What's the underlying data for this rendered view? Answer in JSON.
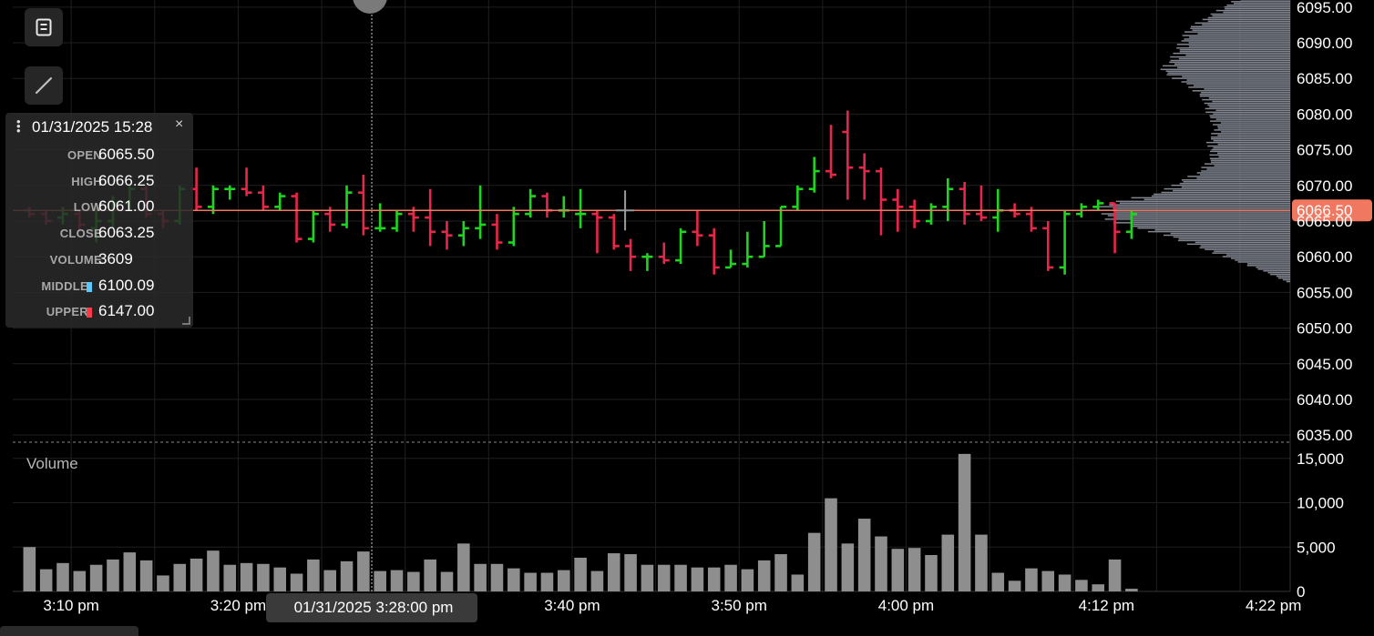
{
  "chart_data": {
    "type": "ohlc",
    "x_axis": {
      "tick_labels": [
        "3:10 pm",
        "3:20 pm",
        "3:40 pm",
        "3:50 pm",
        "4:00 pm",
        "4:12 pm",
        "4:22 pm"
      ],
      "tick_minutes": [
        190,
        200,
        220,
        230,
        240,
        252,
        262
      ],
      "range_minutes": [
        186.5,
        263
      ]
    },
    "price_axis": {
      "ticks": [
        6035,
        6040,
        6045,
        6050,
        6055,
        6060,
        6065,
        6070,
        6075,
        6080,
        6085,
        6090,
        6095
      ],
      "tick_labels": [
        "6035.00",
        "6040.00",
        "6045.00",
        "6050.00",
        "6055.00",
        "6060.00",
        "6065.00",
        "6070.00",
        "6075.00",
        "6080.00",
        "6085.00",
        "6090.00",
        "6095.00"
      ],
      "range": [
        6034,
        6096
      ]
    },
    "volume_axis": {
      "title": "Volume",
      "ticks": [
        0,
        5000,
        10000,
        15000
      ],
      "tick_labels": [
        "0",
        "5,000",
        "10,000",
        "15,000"
      ],
      "range": [
        0,
        16000
      ]
    },
    "current_price": 6066.5,
    "current_price_label": "6066.50",
    "crosshair": {
      "minute": 208,
      "label": "01/31/2025 3:28:00 pm"
    },
    "series": [
      {
        "name": "Volume",
        "type": "bar",
        "color": "#8e8e8e"
      }
    ],
    "bars": [
      {
        "open": 6066.5,
        "high": 6067.0,
        "low": 6065.5,
        "close": 6066.0,
        "volume": 5000
      },
      {
        "open": 6066.0,
        "high": 6066.5,
        "low": 6064.5,
        "close": 6065.0,
        "volume": 2500
      },
      {
        "open": 6065.5,
        "high": 6067.0,
        "low": 6064.5,
        "close": 6066.0,
        "volume": 3200
      },
      {
        "open": 6066.0,
        "high": 6066.5,
        "low": 6063.5,
        "close": 6064.5,
        "volume": 2300
      },
      {
        "open": 6064.0,
        "high": 6067.5,
        "low": 6062.0,
        "close": 6065.0,
        "volume": 3000
      },
      {
        "open": 6065.0,
        "high": 6068.5,
        "low": 6064.0,
        "close": 6067.5,
        "volume": 3600
      },
      {
        "open": 6067.5,
        "high": 6070.0,
        "low": 6066.5,
        "close": 6069.5,
        "volume": 4400
      },
      {
        "open": 6069.5,
        "high": 6070.0,
        "low": 6065.5,
        "close": 6066.0,
        "volume": 3500
      },
      {
        "open": 6066.0,
        "high": 6066.5,
        "low": 6064.0,
        "close": 6065.0,
        "volume": 1800
      },
      {
        "open": 6065.0,
        "high": 6070.0,
        "low": 6064.5,
        "close": 6069.5,
        "volume": 3100
      },
      {
        "open": 6069.5,
        "high": 6072.5,
        "low": 6066.5,
        "close": 6067.0,
        "volume": 3700
      },
      {
        "open": 6067.0,
        "high": 6070.0,
        "low": 6066.0,
        "close": 6069.5,
        "volume": 4600
      },
      {
        "open": 6069.5,
        "high": 6070.0,
        "low": 6068.0,
        "close": 6069.5,
        "volume": 3000
      },
      {
        "open": 6069.5,
        "high": 6072.5,
        "low": 6068.5,
        "close": 6069.0,
        "volume": 3200
      },
      {
        "open": 6069.0,
        "high": 6070.0,
        "low": 6066.5,
        "close": 6067.0,
        "volume": 3100
      },
      {
        "open": 6067.0,
        "high": 6069.0,
        "low": 6066.5,
        "close": 6068.5,
        "volume": 2700
      },
      {
        "open": 6068.5,
        "high": 6069.0,
        "low": 6062.0,
        "close": 6062.5,
        "volume": 2000
      },
      {
        "open": 6062.5,
        "high": 6066.5,
        "low": 6062.0,
        "close": 6066.0,
        "volume": 3600
      },
      {
        "open": 6066.0,
        "high": 6067.0,
        "low": 6063.5,
        "close": 6064.5,
        "volume": 2400
      },
      {
        "open": 6064.5,
        "high": 6070.0,
        "low": 6064.0,
        "close": 6069.0,
        "volume": 3400
      },
      {
        "open": 6069.0,
        "high": 6071.5,
        "low": 6063.0,
        "close": 6064.0,
        "volume": 4500
      },
      {
        "open": 6064.0,
        "high": 6067.5,
        "low": 6063.5,
        "close": 6064.0,
        "volume": 2300
      },
      {
        "open": 6064.0,
        "high": 6066.5,
        "low": 6063.5,
        "close": 6066.0,
        "volume": 2400
      },
      {
        "open": 6066.0,
        "high": 6067.0,
        "low": 6063.5,
        "close": 6065.5,
        "volume": 2200
      },
      {
        "open": 6065.5,
        "high": 6069.5,
        "low": 6061.5,
        "close": 6063.5,
        "volume": 3600
      },
      {
        "open": 6063.5,
        "high": 6065.0,
        "low": 6061.0,
        "close": 6063.0,
        "volume": 2200
      },
      {
        "open": 6063.0,
        "high": 6065.0,
        "low": 6061.5,
        "close": 6064.0,
        "volume": 5400
      },
      {
        "open": 6064.0,
        "high": 6070.0,
        "low": 6062.5,
        "close": 6064.5,
        "volume": 3100
      },
      {
        "open": 6064.5,
        "high": 6066.0,
        "low": 6061.0,
        "close": 6062.0,
        "volume": 3100
      },
      {
        "open": 6062.0,
        "high": 6067.0,
        "low": 6061.5,
        "close": 6066.0,
        "volume": 2600
      },
      {
        "open": 6066.0,
        "high": 6069.5,
        "low": 6065.5,
        "close": 6068.5,
        "volume": 2100
      },
      {
        "open": 6068.5,
        "high": 6069.0,
        "low": 6065.5,
        "close": 6066.5,
        "volume": 2100
      },
      {
        "open": 6066.5,
        "high": 6068.5,
        "low": 6065.5,
        "close": 6066.5,
        "volume": 2400
      },
      {
        "open": 6066.0,
        "high": 6069.5,
        "low": 6064.0,
        "close": 6066.0,
        "volume": 3800
      },
      {
        "open": 6066.0,
        "high": 6066.5,
        "low": 6060.5,
        "close": 6065.5,
        "volume": 2300
      },
      {
        "open": 6065.5,
        "high": 6066.0,
        "low": 6061.0,
        "close": 6061.5,
        "volume": 4300
      },
      {
        "open": 6061.5,
        "high": 6062.5,
        "low": 6058.0,
        "close": 6060.0,
        "volume": 4200
      },
      {
        "open": 6060.0,
        "high": 6060.5,
        "low": 6058.0,
        "close": 6060.0,
        "volume": 3000
      },
      {
        "open": 6060.0,
        "high": 6062.0,
        "low": 6059.0,
        "close": 6059.5,
        "volume": 3000
      },
      {
        "open": 6059.5,
        "high": 6064.0,
        "low": 6059.0,
        "close": 6063.5,
        "volume": 3000
      },
      {
        "open": 6063.5,
        "high": 6066.5,
        "low": 6061.5,
        "close": 6063.0,
        "volume": 2700
      },
      {
        "open": 6063.0,
        "high": 6064.0,
        "low": 6057.5,
        "close": 6058.5,
        "volume": 2700
      },
      {
        "open": 6058.5,
        "high": 6061.0,
        "low": 6058.5,
        "close": 6059.0,
        "volume": 3000
      },
      {
        "open": 6059.0,
        "high": 6063.5,
        "low": 6058.5,
        "close": 6060.0,
        "volume": 2500
      },
      {
        "open": 6060.0,
        "high": 6065.0,
        "low": 6060.0,
        "close": 6061.5,
        "volume": 3500
      },
      {
        "open": 6061.5,
        "high": 6067.0,
        "low": 6061.5,
        "close": 6067.0,
        "volume": 4200
      },
      {
        "open": 6067.0,
        "high": 6070.0,
        "low": 6066.5,
        "close": 6069.5,
        "volume": 1900
      },
      {
        "open": 6069.5,
        "high": 6074.0,
        "low": 6069.0,
        "close": 6072.0,
        "volume": 6600
      },
      {
        "open": 6072.0,
        "high": 6078.5,
        "low": 6071.0,
        "close": 6071.5,
        "volume": 10500
      },
      {
        "open": 6077.5,
        "high": 6080.5,
        "low": 6068.0,
        "close": 6072.5,
        "volume": 5400
      },
      {
        "open": 6072.5,
        "high": 6074.5,
        "low": 6068.0,
        "close": 6072.0,
        "volume": 8200
      },
      {
        "open": 6072.0,
        "high": 6072.5,
        "low": 6063.0,
        "close": 6068.0,
        "volume": 6200
      },
      {
        "open": 6068.0,
        "high": 6069.5,
        "low": 6063.5,
        "close": 6067.0,
        "volume": 4800
      },
      {
        "open": 6067.0,
        "high": 6068.0,
        "low": 6064.0,
        "close": 6065.0,
        "volume": 4900
      },
      {
        "open": 6065.0,
        "high": 6067.5,
        "low": 6064.5,
        "close": 6067.0,
        "volume": 4100
      },
      {
        "open": 6067.0,
        "high": 6071.0,
        "low": 6065.0,
        "close": 6069.5,
        "volume": 6400
      },
      {
        "open": 6069.5,
        "high": 6070.5,
        "low": 6064.5,
        "close": 6066.0,
        "volume": 15500
      },
      {
        "open": 6066.0,
        "high": 6070.0,
        "low": 6065.0,
        "close": 6065.5,
        "volume": 6400
      },
      {
        "open": 6065.5,
        "high": 6069.5,
        "low": 6063.5,
        "close": 6066.5,
        "volume": 2100
      },
      {
        "open": 6066.5,
        "high": 6067.5,
        "low": 6065.5,
        "close": 6066.0,
        "volume": 1200
      },
      {
        "open": 6066.0,
        "high": 6067.0,
        "low": 6063.5,
        "close": 6064.0,
        "volume": 2600
      },
      {
        "open": 6064.0,
        "high": 6065.0,
        "low": 6058.0,
        "close": 6058.5,
        "volume": 2300
      },
      {
        "open": 6058.5,
        "high": 6066.5,
        "low": 6057.5,
        "close": 6066.0,
        "volume": 1900
      },
      {
        "open": 6066.0,
        "high": 6067.5,
        "low": 6065.5,
        "close": 6067.0,
        "volume": 1300
      },
      {
        "open": 6067.0,
        "high": 6068.0,
        "low": 6066.5,
        "close": 6067.5,
        "volume": 800
      },
      {
        "open": 6067.5,
        "high": 6067.5,
        "low": 6060.5,
        "close": 6063.5,
        "volume": 3600
      },
      {
        "open": 6063.5,
        "high": 6066.5,
        "low": 6062.5,
        "close": 6066.0,
        "volume": 300
      }
    ],
    "volume_profile": {
      "price_step": 0.25,
      "levels": [
        {
          "price": 6096,
          "v": 28
        },
        {
          "price": 6094,
          "v": 40
        },
        {
          "price": 6092,
          "v": 52
        },
        {
          "price": 6090,
          "v": 56
        },
        {
          "price": 6088,
          "v": 60
        },
        {
          "price": 6086,
          "v": 66
        },
        {
          "price": 6084,
          "v": 52
        },
        {
          "price": 6082,
          "v": 44
        },
        {
          "price": 6080,
          "v": 42
        },
        {
          "price": 6078,
          "v": 38
        },
        {
          "price": 6076,
          "v": 42
        },
        {
          "price": 6074,
          "v": 40
        },
        {
          "price": 6072,
          "v": 46
        },
        {
          "price": 6070,
          "v": 60
        },
        {
          "price": 6069,
          "v": 66
        },
        {
          "price": 6068,
          "v": 84
        },
        {
          "price": 6067,
          "v": 98
        },
        {
          "price": 6066.5,
          "v": 100
        },
        {
          "price": 6066,
          "v": 96
        },
        {
          "price": 6065,
          "v": 92
        },
        {
          "price": 6064,
          "v": 78
        },
        {
          "price": 6063,
          "v": 64
        },
        {
          "price": 6062,
          "v": 54
        },
        {
          "price": 6061,
          "v": 44
        },
        {
          "price": 6060,
          "v": 34
        },
        {
          "price": 6059,
          "v": 24
        },
        {
          "price": 6058,
          "v": 14
        },
        {
          "price": 6057,
          "v": 6
        },
        {
          "price": 6056.5,
          "v": 2
        }
      ]
    }
  },
  "toolbar": {
    "menu_icon": "list-icon",
    "draw_icon": "line-tool-icon"
  },
  "info_panel": {
    "datetime": "01/31/2025 15:28",
    "close_symbol": "×",
    "rows": [
      {
        "label": "OPEN",
        "value": "6065.50"
      },
      {
        "label": "HIGH",
        "value": "6066.25"
      },
      {
        "label": "LOW",
        "value": "6061.00"
      },
      {
        "label": "CLOSE",
        "value": "6063.25"
      },
      {
        "label": "VOLUME",
        "value": "3609"
      },
      {
        "label": "MIDDLE",
        "value": "6100.09",
        "swatch": "#5ac8fa"
      },
      {
        "label": "UPPER",
        "value": "6147.00",
        "swatch": "#ff3b4a"
      }
    ]
  },
  "colors": {
    "up": "#1fd51f",
    "down": "#e8264a",
    "volume_bar": "#8e8e8e",
    "profile": "#8e93a0",
    "current_price": "#f07860",
    "grid": "#1f1f1f"
  }
}
